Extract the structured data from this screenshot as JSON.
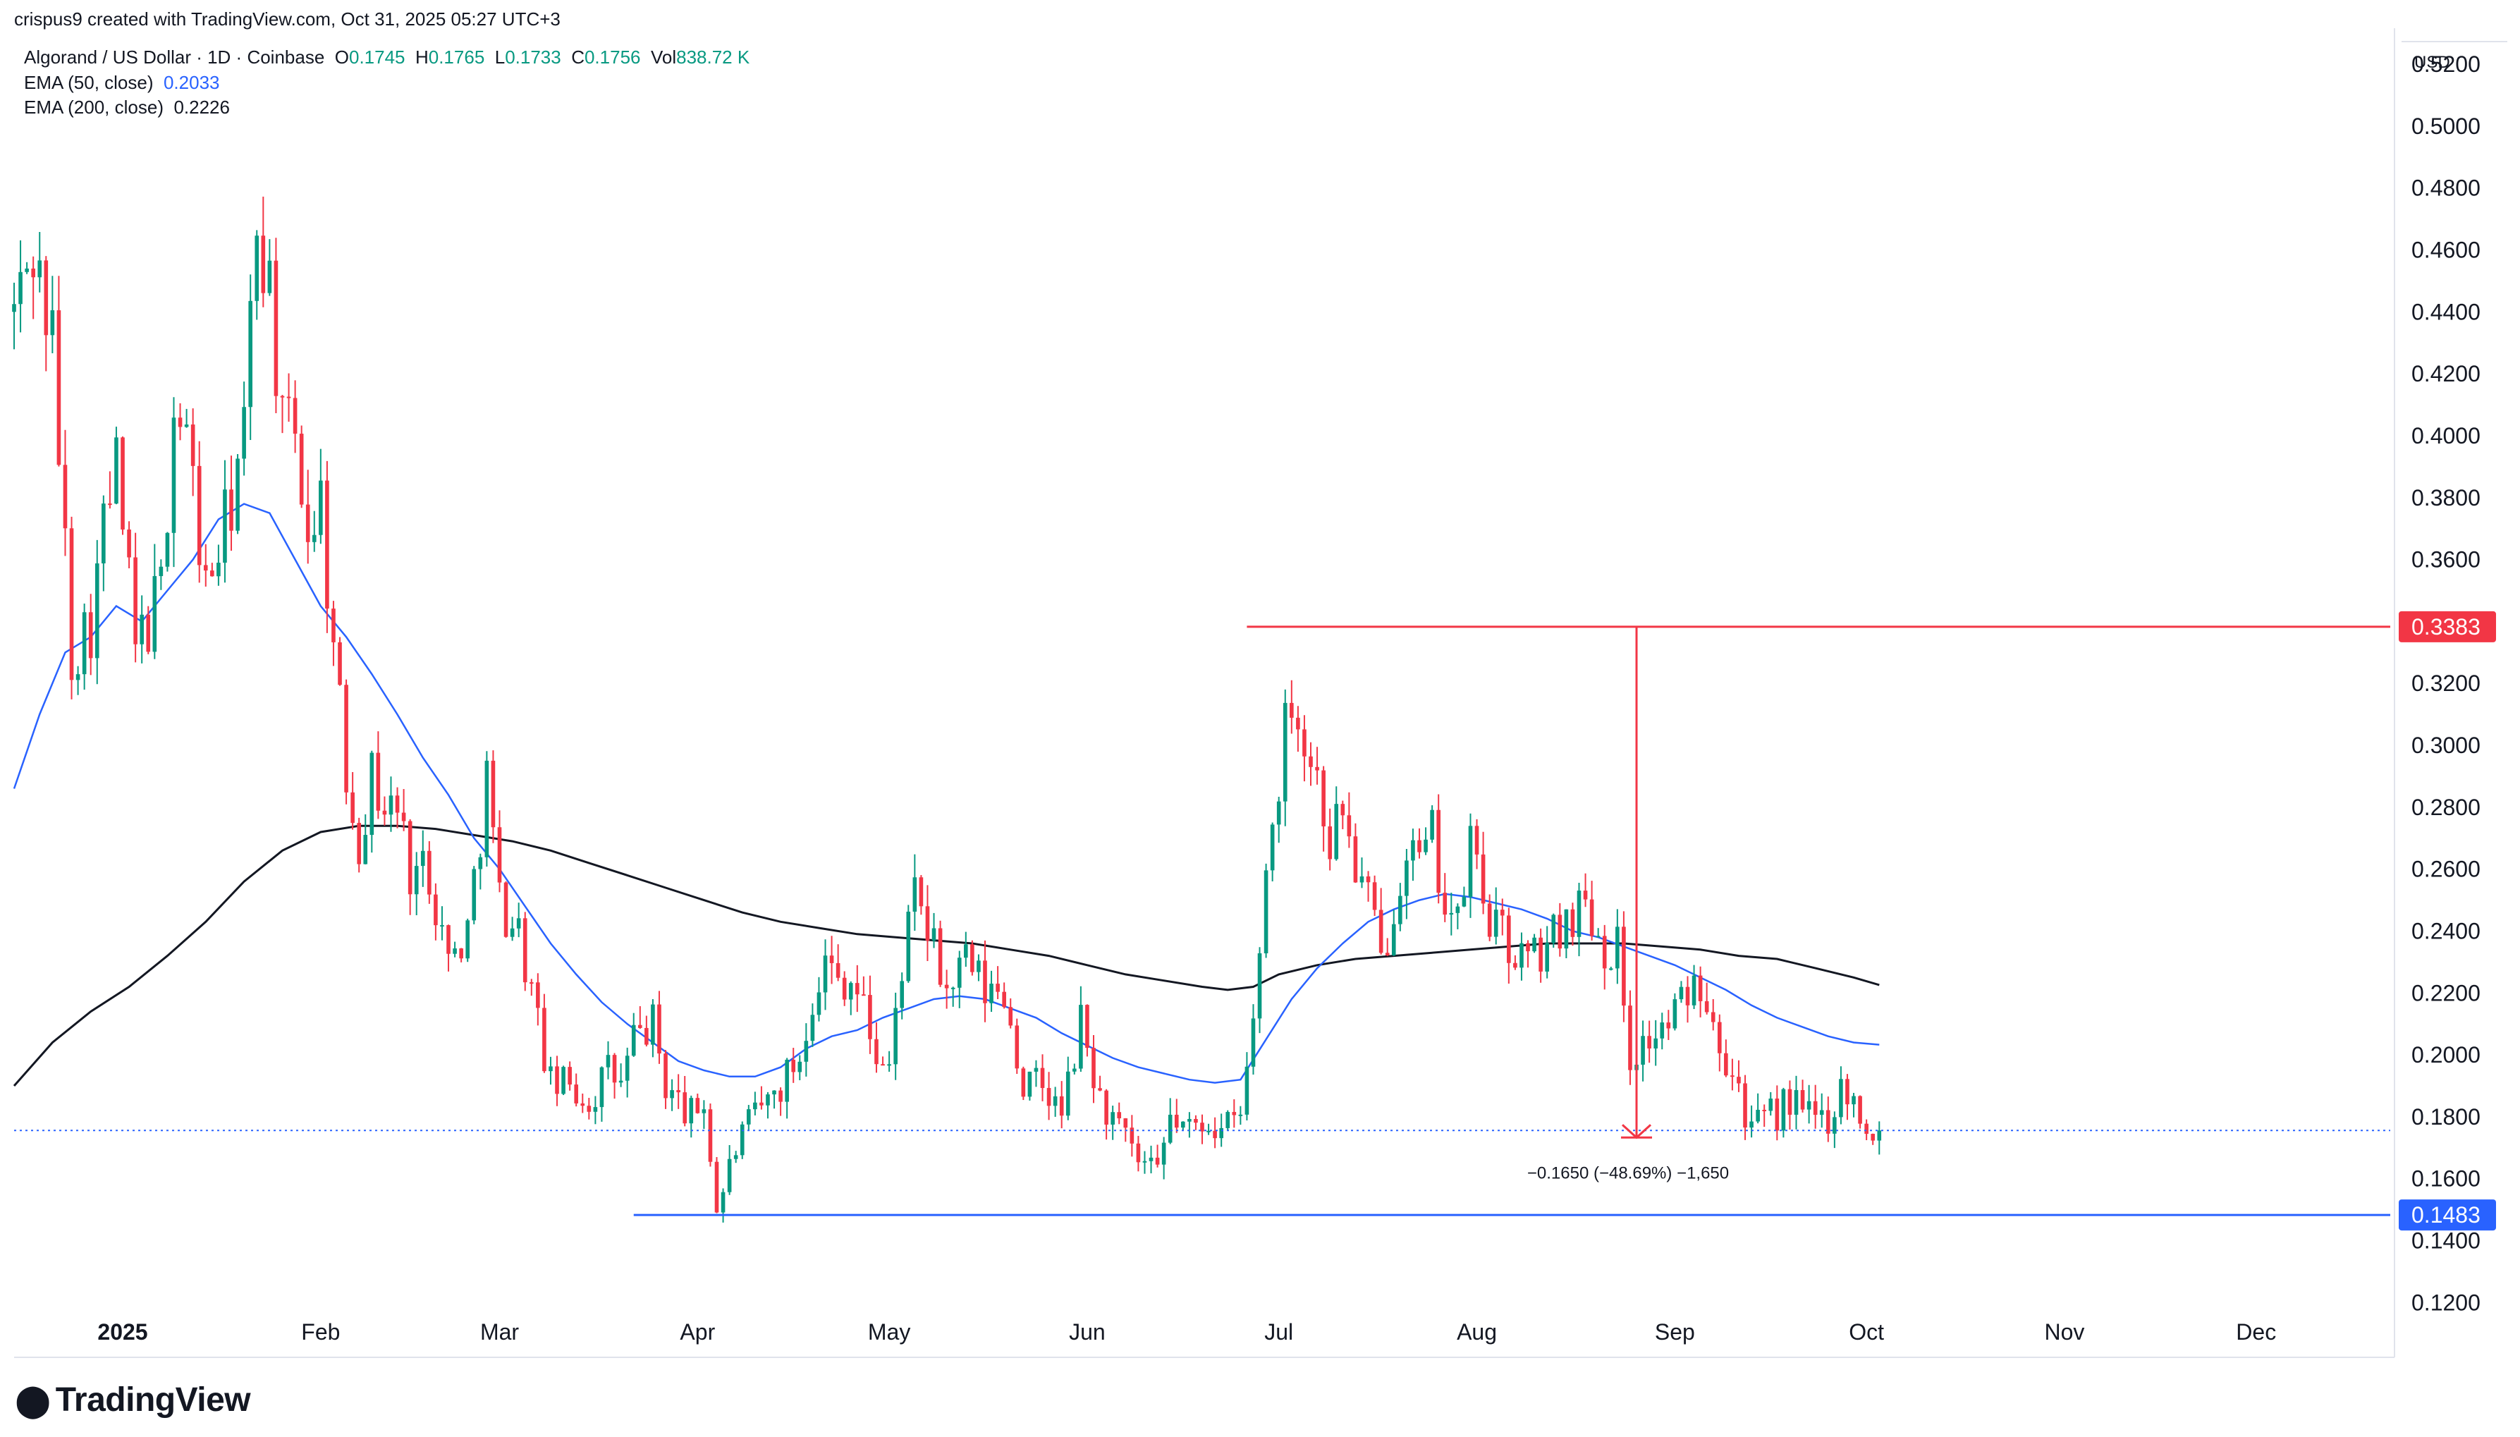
{
  "header": {
    "created_by": "crispus9 created with TradingView.com, Oct 31, 2025 05:27 UTC+3"
  },
  "legend": {
    "symbol": "Algorand / US Dollar · 1D · Coinbase",
    "o_label": "O",
    "o": "0.1745",
    "h_label": "H",
    "h": "0.1765",
    "l_label": "L",
    "l": "0.1733",
    "c_label": "C",
    "c": "0.1756",
    "vol_label": "Vol",
    "vol": "838.72 K",
    "ema50_label": "EMA (50, close)",
    "ema50": "0.2033",
    "ema200_label": "EMA (200, close)",
    "ema200": "0.2226"
  },
  "logo": {
    "text": "TradingView"
  },
  "colors": {
    "up": "#089981",
    "down": "#f23645",
    "ema50": "#2962ff",
    "ema200": "#131722",
    "resistance": "#f23645",
    "support": "#2962ff",
    "current": "#2962ff",
    "measure": "#f23645"
  },
  "chart_data": {
    "type": "candlestick",
    "title": "Algorand / US Dollar · 1D · Coinbase",
    "currency": "USD",
    "ylim": [
      0.108,
      0.528
    ],
    "y_ticks": [
      "0.1200",
      "0.1400",
      "0.1600",
      "0.1800",
      "0.2000",
      "0.2200",
      "0.2400",
      "0.2600",
      "0.2800",
      "0.3000",
      "0.3200",
      "0.3600",
      "0.3800",
      "0.4000",
      "0.4200",
      "0.4400",
      "0.4600",
      "0.4800",
      "0.5000",
      "0.5200"
    ],
    "x_day_range": [
      0,
      372
    ],
    "x_ticks": [
      {
        "label": "2025",
        "day": 17,
        "bold": true
      },
      {
        "label": "Feb",
        "day": 48
      },
      {
        "label": "Mar",
        "day": 76
      },
      {
        "label": "Apr",
        "day": 107
      },
      {
        "label": "May",
        "day": 137
      },
      {
        "label": "Jun",
        "day": 168
      },
      {
        "label": "Jul",
        "day": 198
      },
      {
        "label": "Aug",
        "day": 229
      },
      {
        "label": "Sep",
        "day": 260
      },
      {
        "label": "Oct",
        "day": 290
      },
      {
        "label": "Nov",
        "day": 321
      },
      {
        "label": "Dec",
        "day": 351
      }
    ],
    "anchors": [
      [
        0,
        0.44
      ],
      [
        3,
        0.46
      ],
      [
        6,
        0.43
      ],
      [
        9,
        0.33
      ],
      [
        12,
        0.34
      ],
      [
        14,
        0.37
      ],
      [
        16,
        0.39
      ],
      [
        19,
        0.33
      ],
      [
        21,
        0.34
      ],
      [
        23,
        0.35
      ],
      [
        25,
        0.41
      ],
      [
        27,
        0.4
      ],
      [
        30,
        0.35
      ],
      [
        33,
        0.37
      ],
      [
        36,
        0.4
      ],
      [
        38,
        0.47
      ],
      [
        40,
        0.45
      ],
      [
        42,
        0.4
      ],
      [
        44,
        0.4
      ],
      [
        46,
        0.37
      ],
      [
        48,
        0.38
      ],
      [
        50,
        0.33
      ],
      [
        52,
        0.29
      ],
      [
        54,
        0.27
      ],
      [
        56,
        0.29
      ],
      [
        58,
        0.28
      ],
      [
        60,
        0.28
      ],
      [
        62,
        0.26
      ],
      [
        65,
        0.26
      ],
      [
        68,
        0.23
      ],
      [
        71,
        0.24
      ],
      [
        74,
        0.29
      ],
      [
        76,
        0.25
      ],
      [
        79,
        0.24
      ],
      [
        82,
        0.21
      ],
      [
        84,
        0.19
      ],
      [
        87,
        0.19
      ],
      [
        90,
        0.185
      ],
      [
        93,
        0.195
      ],
      [
        95,
        0.19
      ],
      [
        97,
        0.205
      ],
      [
        100,
        0.21
      ],
      [
        102,
        0.19
      ],
      [
        104,
        0.185
      ],
      [
        106,
        0.18
      ],
      [
        108,
        0.185
      ],
      [
        110,
        0.15
      ],
      [
        113,
        0.17
      ],
      [
        116,
        0.18
      ],
      [
        120,
        0.19
      ],
      [
        123,
        0.2
      ],
      [
        125,
        0.22
      ],
      [
        127,
        0.23
      ],
      [
        129,
        0.225
      ],
      [
        131,
        0.225
      ],
      [
        133,
        0.215
      ],
      [
        135,
        0.2
      ],
      [
        137,
        0.195
      ],
      [
        139,
        0.23
      ],
      [
        141,
        0.25
      ],
      [
        143,
        0.24
      ],
      [
        146,
        0.22
      ],
      [
        149,
        0.23
      ],
      [
        152,
        0.22
      ],
      [
        155,
        0.22
      ],
      [
        158,
        0.19
      ],
      [
        161,
        0.19
      ],
      [
        164,
        0.18
      ],
      [
        167,
        0.21
      ],
      [
        170,
        0.185
      ],
      [
        173,
        0.175
      ],
      [
        176,
        0.165
      ],
      [
        179,
        0.16
      ],
      [
        181,
        0.18
      ],
      [
        184,
        0.175
      ],
      [
        187,
        0.18
      ],
      [
        189,
        0.175
      ],
      [
        192,
        0.18
      ],
      [
        194,
        0.21
      ],
      [
        196,
        0.26
      ],
      [
        198,
        0.29
      ],
      [
        200,
        0.32
      ],
      [
        202,
        0.3
      ],
      [
        204,
        0.29
      ],
      [
        206,
        0.27
      ],
      [
        208,
        0.28
      ],
      [
        210,
        0.26
      ],
      [
        212,
        0.25
      ],
      [
        214,
        0.23
      ],
      [
        216,
        0.25
      ],
      [
        218,
        0.27
      ],
      [
        220,
        0.26
      ],
      [
        222,
        0.27
      ],
      [
        224,
        0.25
      ],
      [
        226,
        0.24
      ],
      [
        228,
        0.27
      ],
      [
        230,
        0.25
      ],
      [
        232,
        0.24
      ],
      [
        234,
        0.235
      ],
      [
        237,
        0.23
      ],
      [
        240,
        0.235
      ],
      [
        243,
        0.245
      ],
      [
        246,
        0.25
      ],
      [
        249,
        0.235
      ],
      [
        251,
        0.235
      ],
      [
        253,
        0.2
      ],
      [
        256,
        0.205
      ],
      [
        259,
        0.21
      ],
      [
        262,
        0.22
      ],
      [
        264,
        0.225
      ],
      [
        266,
        0.215
      ],
      [
        268,
        0.2
      ],
      [
        270,
        0.19
      ],
      [
        272,
        0.175
      ],
      [
        275,
        0.18
      ],
      [
        278,
        0.185
      ],
      [
        281,
        0.18
      ],
      [
        284,
        0.18
      ],
      [
        286,
        0.19
      ],
      [
        288,
        0.185
      ],
      [
        290,
        0.178
      ],
      [
        292,
        0.1756
      ]
    ],
    "ema50": [
      [
        0,
        0.286
      ],
      [
        4,
        0.31
      ],
      [
        8,
        0.33
      ],
      [
        12,
        0.335
      ],
      [
        16,
        0.345
      ],
      [
        20,
        0.34
      ],
      [
        24,
        0.35
      ],
      [
        28,
        0.36
      ],
      [
        32,
        0.373
      ],
      [
        36,
        0.378
      ],
      [
        40,
        0.375
      ],
      [
        44,
        0.36
      ],
      [
        48,
        0.345
      ],
      [
        52,
        0.335
      ],
      [
        56,
        0.323
      ],
      [
        60,
        0.31
      ],
      [
        64,
        0.296
      ],
      [
        68,
        0.284
      ],
      [
        72,
        0.27
      ],
      [
        76,
        0.26
      ],
      [
        80,
        0.248
      ],
      [
        84,
        0.236
      ],
      [
        88,
        0.226
      ],
      [
        92,
        0.217
      ],
      [
        96,
        0.21
      ],
      [
        100,
        0.204
      ],
      [
        104,
        0.198
      ],
      [
        108,
        0.195
      ],
      [
        112,
        0.193
      ],
      [
        116,
        0.193
      ],
      [
        120,
        0.196
      ],
      [
        124,
        0.202
      ],
      [
        128,
        0.206
      ],
      [
        132,
        0.208
      ],
      [
        136,
        0.212
      ],
      [
        140,
        0.215
      ],
      [
        144,
        0.218
      ],
      [
        148,
        0.219
      ],
      [
        152,
        0.218
      ],
      [
        156,
        0.215
      ],
      [
        160,
        0.212
      ],
      [
        164,
        0.207
      ],
      [
        168,
        0.203
      ],
      [
        172,
        0.199
      ],
      [
        176,
        0.196
      ],
      [
        180,
        0.194
      ],
      [
        184,
        0.192
      ],
      [
        188,
        0.191
      ],
      [
        192,
        0.192
      ],
      [
        196,
        0.205
      ],
      [
        200,
        0.218
      ],
      [
        204,
        0.228
      ],
      [
        208,
        0.236
      ],
      [
        212,
        0.243
      ],
      [
        216,
        0.247
      ],
      [
        220,
        0.25
      ],
      [
        224,
        0.252
      ],
      [
        228,
        0.251
      ],
      [
        232,
        0.249
      ],
      [
        236,
        0.247
      ],
      [
        240,
        0.244
      ],
      [
        244,
        0.24
      ],
      [
        248,
        0.238
      ],
      [
        252,
        0.235
      ],
      [
        256,
        0.232
      ],
      [
        260,
        0.229
      ],
      [
        264,
        0.225
      ],
      [
        268,
        0.221
      ],
      [
        272,
        0.216
      ],
      [
        276,
        0.212
      ],
      [
        280,
        0.209
      ],
      [
        284,
        0.206
      ],
      [
        288,
        0.204
      ],
      [
        292,
        0.2033
      ]
    ],
    "ema200": [
      [
        0,
        0.19
      ],
      [
        6,
        0.204
      ],
      [
        12,
        0.214
      ],
      [
        18,
        0.222
      ],
      [
        24,
        0.232
      ],
      [
        30,
        0.243
      ],
      [
        36,
        0.256
      ],
      [
        42,
        0.266
      ],
      [
        48,
        0.272
      ],
      [
        54,
        0.274
      ],
      [
        60,
        0.274
      ],
      [
        66,
        0.273
      ],
      [
        72,
        0.271
      ],
      [
        78,
        0.269
      ],
      [
        84,
        0.266
      ],
      [
        90,
        0.262
      ],
      [
        96,
        0.258
      ],
      [
        102,
        0.254
      ],
      [
        108,
        0.25
      ],
      [
        114,
        0.246
      ],
      [
        120,
        0.243
      ],
      [
        126,
        0.241
      ],
      [
        132,
        0.239
      ],
      [
        138,
        0.238
      ],
      [
        144,
        0.237
      ],
      [
        150,
        0.236
      ],
      [
        156,
        0.234
      ],
      [
        162,
        0.232
      ],
      [
        168,
        0.229
      ],
      [
        174,
        0.226
      ],
      [
        180,
        0.224
      ],
      [
        186,
        0.222
      ],
      [
        190,
        0.221
      ],
      [
        194,
        0.222
      ],
      [
        198,
        0.226
      ],
      [
        204,
        0.229
      ],
      [
        210,
        0.231
      ],
      [
        216,
        0.232
      ],
      [
        222,
        0.233
      ],
      [
        228,
        0.234
      ],
      [
        234,
        0.235
      ],
      [
        240,
        0.236
      ],
      [
        246,
        0.236
      ],
      [
        252,
        0.236
      ],
      [
        258,
        0.235
      ],
      [
        264,
        0.234
      ],
      [
        270,
        0.232
      ],
      [
        276,
        0.231
      ],
      [
        282,
        0.228
      ],
      [
        288,
        0.225
      ],
      [
        292,
        0.2226
      ]
    ],
    "resistance": {
      "value": 0.3383,
      "label": "0.3383",
      "from_day": 193
    },
    "support": {
      "value": 0.1483,
      "label": "0.1483",
      "from_day": 97
    },
    "current_price": {
      "value": 0.1756
    },
    "measure": {
      "from": 0.3383,
      "to": 0.1733,
      "day": 254,
      "label": "−0.1650 (−48.69%) −1,650"
    },
    "annotations": []
  }
}
